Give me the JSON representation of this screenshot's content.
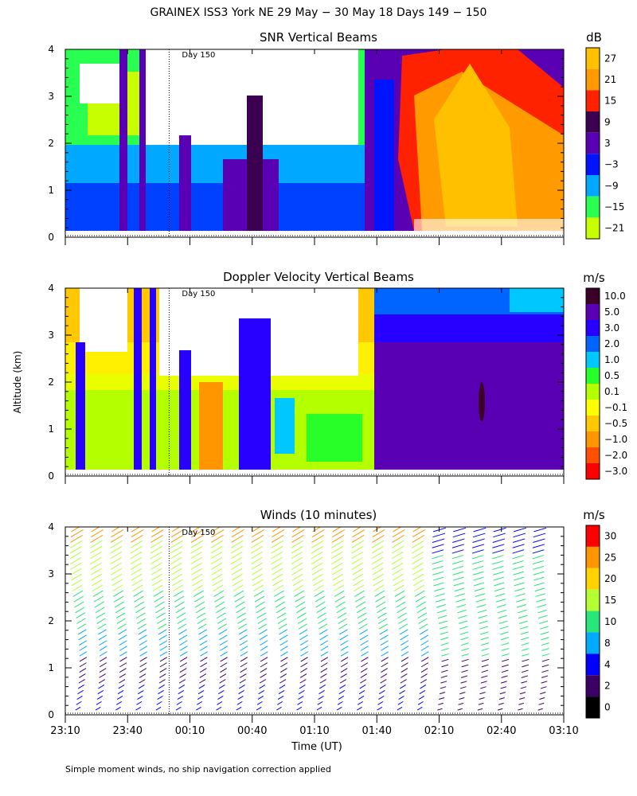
{
  "page": {
    "title": "GRAINEX ISS3 York NE  29 May − 30 May 18 Days 149 − 150",
    "ylabel": "Altitude (km)",
    "xlabel": "Time (UT)",
    "footnote": "Simple moment winds, no ship navigation correction applied",
    "day_marker": "Day 150"
  },
  "chart_data": [
    {
      "type": "heatmap",
      "title": "SNR Vertical Beams",
      "unit": "dB",
      "x_range": [
        "23:10",
        "03:10"
      ],
      "ylim": [
        0,
        4
      ],
      "yticks": [
        "0",
        "1",
        "2",
        "3",
        "4"
      ],
      "xticks": [
        "23:10",
        "23:40",
        "00:10",
        "00:40",
        "01:10",
        "01:40",
        "02:10",
        "02:40",
        "03:10"
      ],
      "colorbar": {
        "labels": [
          "27",
          "21",
          "15",
          "9",
          "3",
          "−3",
          "−9",
          "−15",
          "−21"
        ],
        "colors": [
          "#ffc000",
          "#ff9a00",
          "#ff2200",
          "#3c0050",
          "#5a00b4",
          "#0014ff",
          "#00a8ff",
          "#28ff50",
          "#c8ff00"
        ]
      }
    },
    {
      "type": "heatmap",
      "title": "Doppler Velocity Vertical Beams",
      "unit": "m/s",
      "x_range": [
        "23:10",
        "03:10"
      ],
      "ylim": [
        0,
        4
      ],
      "yticks": [
        "0",
        "1",
        "2",
        "3",
        "4"
      ],
      "colorbar": {
        "labels": [
          "10.0",
          "5.0",
          "3.0",
          "2.0",
          "1.0",
          "0.5",
          "0.1",
          "−0.1",
          "−0.5",
          "−1.0",
          "−2.0",
          "−3.0"
        ],
        "colors": [
          "#3c0028",
          "#5a00b4",
          "#2800ff",
          "#0064ff",
          "#00c8ff",
          "#28ff28",
          "#b4ff00",
          "#ffff00",
          "#ffc800",
          "#ff9600",
          "#ff5000",
          "#ff0000"
        ]
      }
    },
    {
      "type": "wind_barbs",
      "title": "Winds (10 minutes)",
      "unit": "m/s",
      "x_range": [
        "23:10",
        "03:10"
      ],
      "ylim": [
        0,
        4
      ],
      "yticks": [
        "0",
        "1",
        "2",
        "3",
        "4"
      ],
      "colorbar": {
        "labels": [
          "30",
          "25",
          "20",
          "15",
          "10",
          "8",
          "4",
          "2",
          "0"
        ],
        "colors": [
          "#ff0000",
          "#ff9600",
          "#ffd200",
          "#b4ff32",
          "#28e678",
          "#00aaff",
          "#0000ff",
          "#3c0064",
          "#000000"
        ]
      }
    }
  ]
}
